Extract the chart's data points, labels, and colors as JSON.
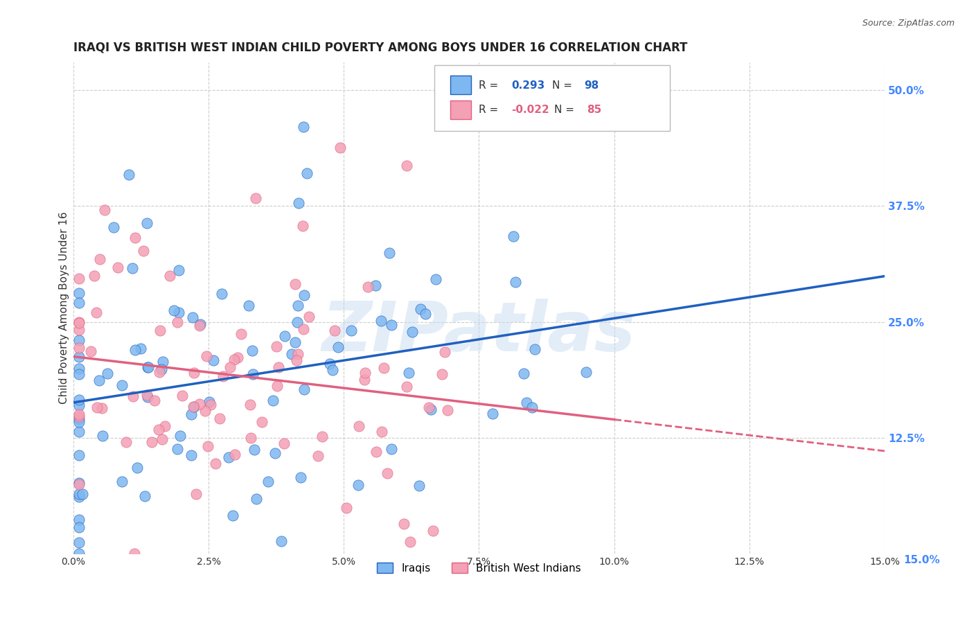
{
  "title": "IRAQI VS BRITISH WEST INDIAN CHILD POVERTY AMONG BOYS UNDER 16 CORRELATION CHART",
  "source": "Source: ZipAtlas.com",
  "xlabel": "",
  "ylabel": "Child Poverty Among Boys Under 16",
  "x_tick_labels": [
    "0.0%",
    "2.5%",
    "5.0%",
    "7.5%",
    "10.0%",
    "12.5%",
    "15.0%"
  ],
  "x_ticks": [
    0.0,
    0.025,
    0.05,
    0.075,
    0.1,
    0.125,
    0.15
  ],
  "y_tick_labels": [
    "12.5%",
    "25.0%",
    "37.5%",
    "50.0%"
  ],
  "y_ticks": [
    0.125,
    0.25,
    0.375,
    0.5
  ],
  "xlim": [
    0.0,
    0.15
  ],
  "ylim": [
    0.0,
    0.53
  ],
  "iraqis_R": 0.293,
  "iraqis_N": 98,
  "bwi_R": -0.022,
  "bwi_N": 85,
  "scatter_color_iraqis": "#7EB8F0",
  "scatter_color_bwi": "#F4A0B5",
  "line_color_iraqis": "#2060C0",
  "line_color_bwi": "#E06080",
  "legend_label_iraqis": "Iraqis",
  "legend_label_bwi": "British West Indians",
  "watermark": "ZIPatlas",
  "background_color": "#ffffff",
  "grid_color": "#cccccc",
  "right_tick_color": "#4488FF",
  "title_fontsize": 12,
  "axis_label_fontsize": 11
}
